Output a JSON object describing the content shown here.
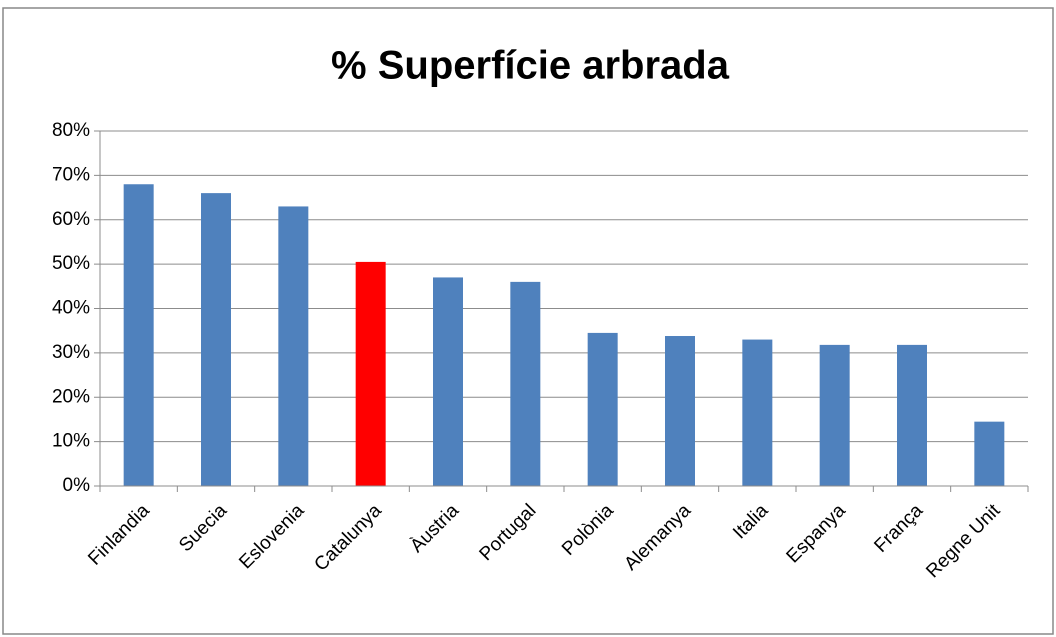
{
  "chart_data": {
    "type": "bar",
    "title": "% Superfície arbrada",
    "categories": [
      "Finlandia",
      "Suecia",
      "Eslovenia",
      "Catalunya",
      "Àustria",
      "Portugal",
      "Polònia",
      "Alemanya",
      "Italia",
      "Espanya",
      "França",
      "Regne Unit"
    ],
    "values": [
      68,
      66,
      63,
      50.5,
      47,
      46,
      34.5,
      33.8,
      33,
      31.8,
      31.8,
      14.5
    ],
    "colors": [
      "#4f81bd",
      "#4f81bd",
      "#4f81bd",
      "#ff0000",
      "#4f81bd",
      "#4f81bd",
      "#4f81bd",
      "#4f81bd",
      "#4f81bd",
      "#4f81bd",
      "#4f81bd",
      "#4f81bd"
    ],
    "ylim": [
      0,
      80
    ],
    "yticks": [
      {
        "value": 0,
        "label": "0%"
      },
      {
        "value": 10,
        "label": "10%"
      },
      {
        "value": 20,
        "label": "20%"
      },
      {
        "value": 30,
        "label": "30%"
      },
      {
        "value": 40,
        "label": "40%"
      },
      {
        "value": 50,
        "label": "50%"
      },
      {
        "value": 60,
        "label": "60%"
      },
      {
        "value": 70,
        "label": "70%"
      },
      {
        "value": 80,
        "label": "80%"
      }
    ],
    "grid": true
  }
}
